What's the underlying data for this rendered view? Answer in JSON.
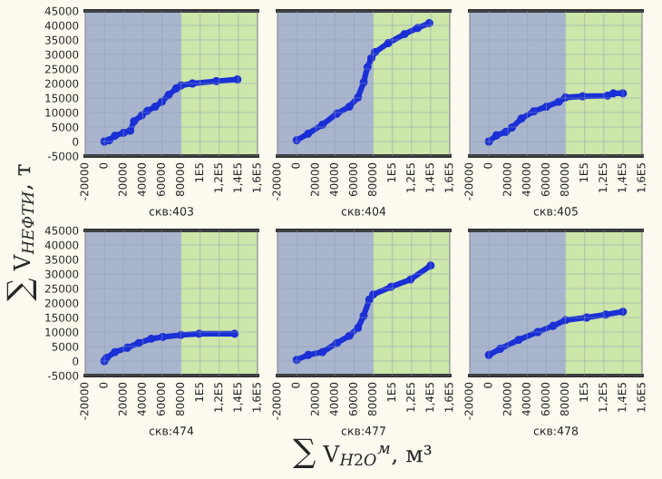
{
  "chart_data": [
    {
      "type": "line",
      "title": "скв:403",
      "ylabel": "∑ V$_{НЕФТИ}$, т",
      "x": [
        0,
        5000,
        11000,
        20000,
        27000,
        31000,
        39000,
        45000,
        53000,
        60000,
        67000,
        75000,
        80000,
        92000,
        117000,
        139000
      ],
      "series": [
        {
          "color": "#1a2fd6",
          "values": [
            0,
            400,
            2000,
            3000,
            3700,
            7000,
            9000,
            10600,
            12000,
            13700,
            16000,
            18300,
            19300,
            20000,
            20800,
            21400
          ]
        }
      ],
      "xlim": [
        -20000,
        160000
      ],
      "xticks": [
        -20000,
        0,
        20000,
        40000,
        60000,
        80000,
        {
          "value": 100000,
          "label": "1E5"
        },
        {
          "value": 120000,
          "label": "1,2E5"
        },
        {
          "value": 140000,
          "label": "1,4E5"
        },
        {
          "value": 160000,
          "label": "1,6E5"
        }
      ],
      "ylim": [
        -5000,
        45000
      ],
      "yticks": [
        -5000,
        0,
        5000,
        10000,
        15000,
        20000,
        25000,
        30000,
        35000,
        40000,
        45000
      ],
      "bands": [
        {
          "axis": "x",
          "from": -20000,
          "to": 80000,
          "color": "#a9b5cc"
        },
        {
          "axis": "x",
          "from": 80000,
          "to": 160000,
          "color": "#cde6a9"
        }
      ],
      "grid": true,
      "marker": "circle"
    },
    {
      "type": "line",
      "title": "скв:404",
      "x": [
        0,
        12000,
        27000,
        42000,
        55000,
        64000,
        70000,
        74000,
        78000,
        82000,
        95700,
        112700,
        126400,
        138600
      ],
      "series": [
        {
          "color": "#1a2fd6",
          "values": [
            400,
            2700,
            5800,
            9600,
            12000,
            15200,
            20400,
            25600,
            28700,
            30800,
            33900,
            37000,
            39100,
            40800
          ]
        }
      ],
      "xlim": [
        -20000,
        160000
      ],
      "xticks": [
        -20000,
        0,
        20000,
        40000,
        60000,
        80000,
        {
          "value": 100000,
          "label": "1E5"
        },
        {
          "value": 120000,
          "label": "1,2E5"
        },
        {
          "value": 140000,
          "label": "1,4E5"
        },
        {
          "value": 160000,
          "label": "1,6E5"
        }
      ],
      "ylim": [
        -5000,
        45000
      ],
      "yticks": [
        -5000,
        0,
        5000,
        10000,
        15000,
        20000,
        25000,
        30000,
        35000,
        40000,
        45000
      ],
      "bands": [
        {
          "axis": "x",
          "from": -20000,
          "to": 80000,
          "color": "#a9b5cc"
        },
        {
          "axis": "x",
          "from": 80000,
          "to": 160000,
          "color": "#cde6a9"
        }
      ],
      "grid": true,
      "marker": "circle",
      "tick_labels": "x"
    },
    {
      "type": "line",
      "title": "скв:405",
      "x": [
        0,
        7800,
        17600,
        24000,
        34000,
        47000,
        60000,
        73000,
        80000,
        98000,
        124000,
        130000,
        140000
      ],
      "series": [
        {
          "color": "#1a2fd6",
          "values": [
            0,
            2100,
            3300,
            4800,
            7900,
            10400,
            12000,
            13700,
            15200,
            15600,
            15800,
            16600,
            16600
          ]
        }
      ],
      "xlim": [
        -20000,
        160000
      ],
      "xticks": [
        -20000,
        0,
        20000,
        40000,
        60000,
        80000,
        {
          "value": 100000,
          "label": "1E5"
        },
        {
          "value": 120000,
          "label": "1,2E5"
        },
        {
          "value": 140000,
          "label": "1,4E5"
        },
        {
          "value": 160000,
          "label": "1,6E5"
        }
      ],
      "ylim": [
        -5000,
        45000
      ],
      "yticks": [
        -5000,
        0,
        5000,
        10000,
        15000,
        20000,
        25000,
        30000,
        35000,
        40000,
        45000
      ],
      "bands": [
        {
          "axis": "x",
          "from": -20000,
          "to": 80000,
          "color": "#a9b5cc"
        },
        {
          "axis": "x",
          "from": 80000,
          "to": 160000,
          "color": "#cde6a9"
        }
      ],
      "grid": true,
      "marker": "circle",
      "tick_labels": "x"
    },
    {
      "type": "line",
      "title": "скв:474",
      "x": [
        0,
        2000,
        11000,
        24000,
        36000,
        49000,
        61000,
        80000,
        99000,
        136000
      ],
      "series": [
        {
          "color": "#1a2fd6",
          "values": [
            0,
            1000,
            3100,
            4600,
            6200,
            7700,
            8300,
            9000,
            9400,
            9400
          ]
        }
      ],
      "xlim": [
        -20000,
        160000
      ],
      "xticks": [
        -20000,
        0,
        20000,
        40000,
        60000,
        80000,
        {
          "value": 100000,
          "label": "1E5"
        },
        {
          "value": 120000,
          "label": "1,2E5"
        },
        {
          "value": 140000,
          "label": "1,4E5"
        },
        {
          "value": 160000,
          "label": "1,6E5"
        }
      ],
      "ylim": [
        -5000,
        45000
      ],
      "yticks": [
        -5000,
        0,
        5000,
        10000,
        15000,
        20000,
        25000,
        30000,
        35000,
        40000,
        45000
      ],
      "bands": [
        {
          "axis": "x",
          "from": -20000,
          "to": 80000,
          "color": "#a9b5cc"
        },
        {
          "axis": "x",
          "from": 80000,
          "to": 160000,
          "color": "#cde6a9"
        }
      ],
      "grid": true,
      "marker": "circle"
    },
    {
      "type": "line",
      "title": "скв:477",
      "xlabel": "∑ V$_{H2O}$$^{м}$, м³",
      "x": [
        0,
        12000,
        27000,
        42000,
        55000,
        64000,
        70000,
        76000,
        80000,
        98700,
        119000,
        140000
      ],
      "series": [
        {
          "color": "#1a2fd6",
          "values": [
            400,
            2100,
            3100,
            6200,
            8700,
            11400,
            15600,
            21200,
            22900,
            25600,
            28100,
            32900
          ]
        }
      ],
      "xlim": [
        -20000,
        160000
      ],
      "xticks": [
        -20000,
        0,
        20000,
        40000,
        60000,
        80000,
        {
          "value": 100000,
          "label": "1E5"
        },
        {
          "value": 120000,
          "label": "1,2E5"
        },
        {
          "value": 140000,
          "label": "1,4E5"
        },
        {
          "value": 160000,
          "label": "1,6E5"
        }
      ],
      "ylim": [
        -5000,
        45000
      ],
      "yticks": [
        -5000,
        0,
        5000,
        10000,
        15000,
        20000,
        25000,
        30000,
        35000,
        40000,
        45000
      ],
      "bands": [
        {
          "axis": "x",
          "from": -20000,
          "to": 80000,
          "color": "#a9b5cc"
        },
        {
          "axis": "x",
          "from": 80000,
          "to": 160000,
          "color": "#cde6a9"
        }
      ],
      "grid": true,
      "marker": "circle",
      "tick_labels": "x"
    },
    {
      "type": "line",
      "title": "скв:478",
      "x": [
        0,
        11700,
        31000,
        51000,
        67000,
        80000,
        102000,
        122000,
        140000
      ],
      "series": [
        {
          "color": "#1a2fd6",
          "values": [
            2100,
            4200,
            7300,
            10000,
            12100,
            14100,
            15000,
            16000,
            17000
          ]
        }
      ],
      "xlim": [
        -20000,
        160000
      ],
      "xticks": [
        -20000,
        0,
        20000,
        40000,
        60000,
        80000,
        {
          "value": 100000,
          "label": "1E5"
        },
        {
          "value": 120000,
          "label": "1,2E5"
        },
        {
          "value": 140000,
          "label": "1,4E5"
        },
        {
          "value": 160000,
          "label": "1,6E5"
        }
      ],
      "ylim": [
        -5000,
        45000
      ],
      "yticks": [
        -5000,
        0,
        5000,
        10000,
        15000,
        20000,
        25000,
        30000,
        35000,
        40000,
        45000
      ],
      "bands": [
        {
          "axis": "x",
          "from": -20000,
          "to": 80000,
          "color": "#a9b5cc"
        },
        {
          "axis": "x",
          "from": 80000,
          "to": 160000,
          "color": "#cde6a9"
        }
      ],
      "grid": true,
      "marker": "circle",
      "tick_labels": "x"
    }
  ]
}
